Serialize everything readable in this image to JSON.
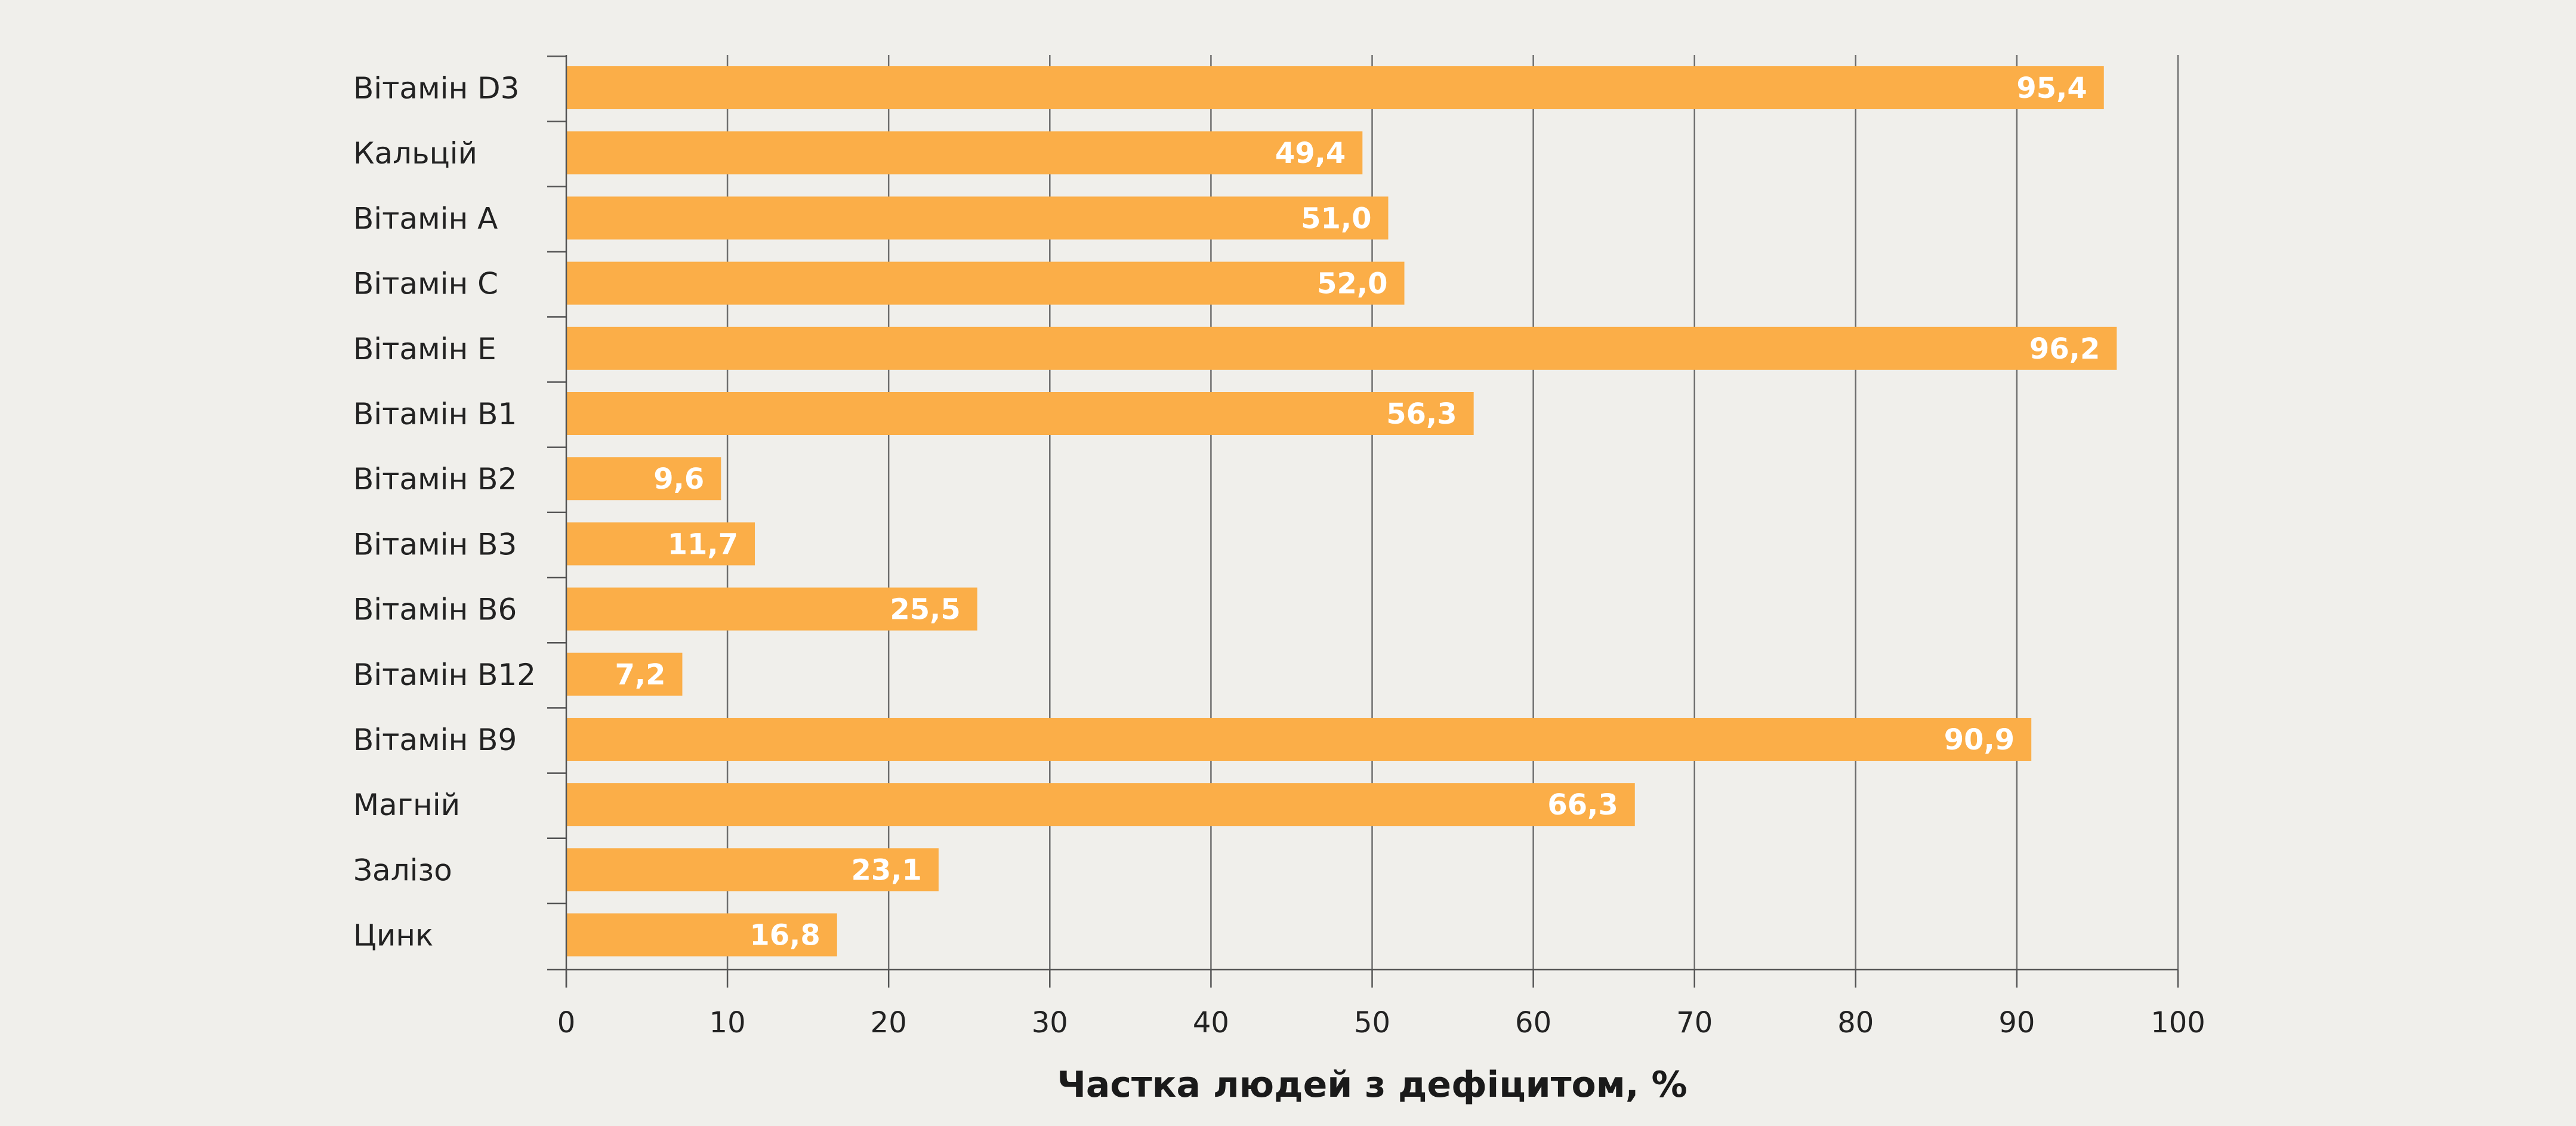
{
  "chart_data": {
    "type": "bar",
    "orientation": "horizontal",
    "categories": [
      "Вітамін D3",
      "Кальцій",
      "Вітамін А",
      "Вітамін С",
      "Вітамін Е",
      "Вітамін В1",
      "Вітамін В2",
      "Вітамін В3",
      "Вітамін В6",
      "Вітамін В12",
      "Вітамін В9",
      "Магній",
      "Залізо",
      "Цинк"
    ],
    "values": [
      95.4,
      49.4,
      51.0,
      52.0,
      96.2,
      56.3,
      9.6,
      11.7,
      25.5,
      7.2,
      90.9,
      66.3,
      23.1,
      16.8
    ],
    "value_labels": [
      "95,4",
      "49,4",
      "51,0",
      "52,0",
      "96,2",
      "56,3",
      "9,6",
      "11,7",
      "25,5",
      "7,2",
      "90,9",
      "66,3",
      "23,1",
      "16,8"
    ],
    "xlabel": "Частка людей з дефіцитом, %",
    "xlim": [
      0,
      100
    ],
    "xticks": [
      0,
      10,
      20,
      30,
      40,
      50,
      60,
      70,
      80,
      90,
      100
    ],
    "grid": "vertical",
    "legend": "none",
    "colors": {
      "bar": "#fbae48",
      "grid": "#6e6e6e",
      "axis": "#555555",
      "background": "#f0efeb",
      "value_text": "#ffffff"
    }
  }
}
